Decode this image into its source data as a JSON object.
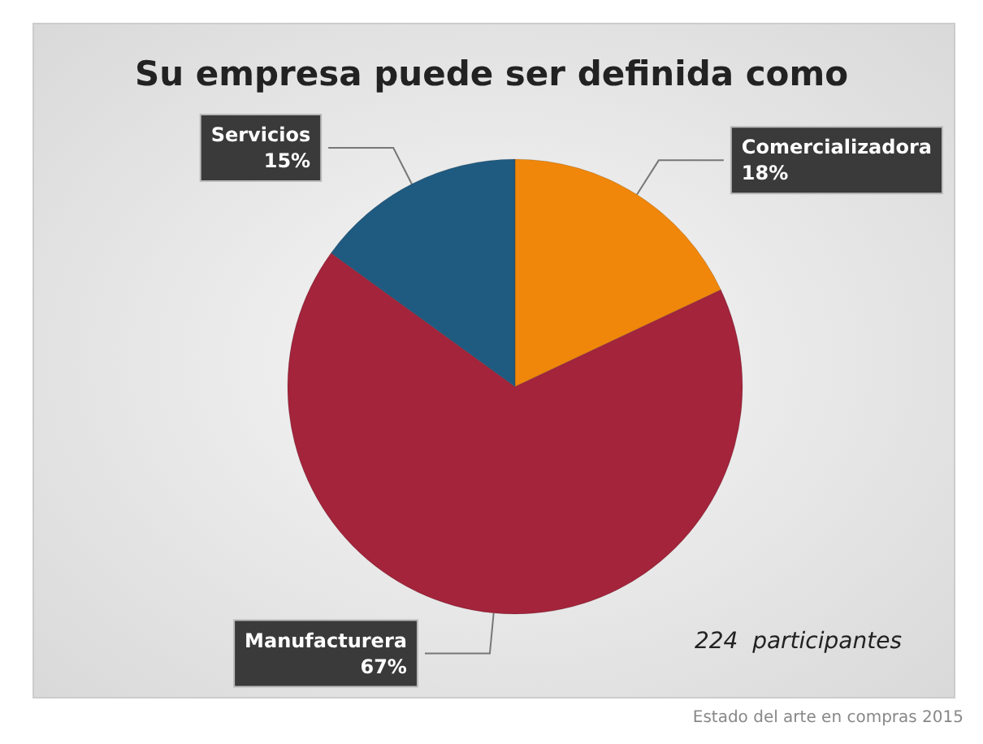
{
  "chart_data": {
    "type": "pie",
    "title": "Su empresa puede ser definida como",
    "categories": [
      "Comercializadora",
      "Manufacturera",
      "Servicios"
    ],
    "values": [
      18,
      67,
      15
    ],
    "colors": [
      "#f0870a",
      "#a3243b",
      "#1f5a80"
    ],
    "value_labels": [
      "18%",
      "67%",
      "15%"
    ],
    "legend": false,
    "annotations": [
      "224  participantes",
      "Estado del arte en compras 2015"
    ]
  }
}
